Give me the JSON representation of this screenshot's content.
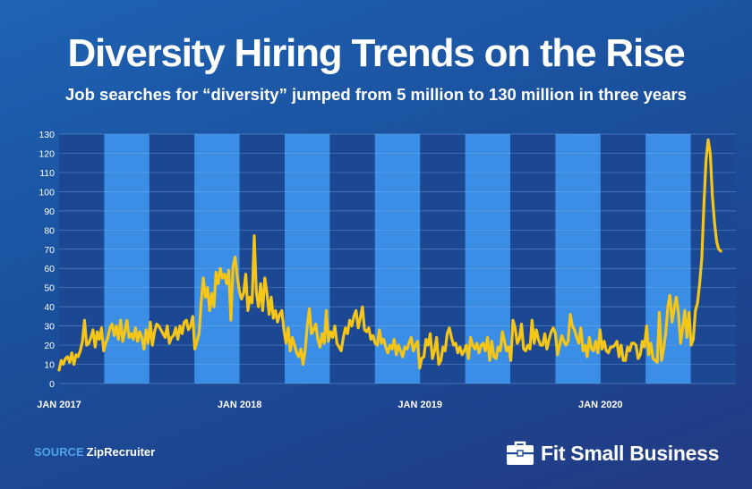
{
  "title": "Diversity Hiring Trends on the Rise",
  "subtitle": "Job searches for “diversity” jumped from 5 million to 130 million in three years",
  "source": {
    "label": "SOURCE",
    "value": "ZipRecruiter"
  },
  "brand": {
    "name": "Fit Small Business",
    "icon": "briefcase-icon"
  },
  "colors": {
    "line": "#f5c518",
    "band_light": "#3a8ee6",
    "band_dark": "#1b4793",
    "grid": "#7fb0e8",
    "text": "#ffffff"
  },
  "chart_data": {
    "type": "line",
    "title": "Diversity Hiring Trends on the Rise",
    "subtitle": "Job searches for “diversity” jumped from 5 million to 130 million in three years",
    "xlabel": "",
    "ylabel": "",
    "ylim": [
      0,
      130
    ],
    "yticks": [
      0,
      10,
      20,
      30,
      40,
      50,
      60,
      70,
      80,
      90,
      100,
      110,
      120,
      130
    ],
    "xlim": [
      "2017-01",
      "2020-10"
    ],
    "xticks": [
      "JAN 2017",
      "JAN 2018",
      "JAN 2019",
      "JAN 2020"
    ],
    "grid": true,
    "background_bands": [
      [
        "2017-04",
        "2017-07"
      ],
      [
        "2017-10",
        "2018-01"
      ],
      [
        "2018-04",
        "2018-07"
      ],
      [
        "2018-10",
        "2019-01"
      ],
      [
        "2019-04",
        "2019-07"
      ],
      [
        "2019-10",
        "2020-01"
      ],
      [
        "2020-04",
        "2020-07"
      ]
    ],
    "series": [
      {
        "x_start": "2017-01",
        "x_end": "2020-09",
        "values": [
          7,
          12,
          10,
          13,
          14,
          11,
          16,
          10,
          15,
          14,
          17,
          22,
          33,
          20,
          21,
          24,
          28,
          19,
          27,
          23,
          29,
          17,
          21,
          24,
          29,
          31,
          25,
          30,
          23,
          33,
          22,
          27,
          33,
          24,
          26,
          23,
          29,
          22,
          27,
          24,
          18,
          28,
          21,
          32,
          20,
          27,
          31,
          30,
          28,
          26,
          24,
          30,
          21,
          24,
          25,
          29,
          23,
          30,
          26,
          32,
          33,
          28,
          30,
          35,
          18,
          22,
          26,
          42,
          55,
          45,
          50,
          38,
          47,
          40,
          58,
          52,
          60,
          55,
          57,
          52,
          59,
          33,
          61,
          66,
          56,
          48,
          44,
          47,
          57,
          38,
          45,
          42,
          77,
          48,
          40,
          52,
          38,
          55,
          47,
          36,
          45,
          34,
          38,
          32,
          36,
          38,
          28,
          21,
          29,
          17,
          24,
          20,
          16,
          14,
          18,
          10,
          17,
          30,
          39,
          26,
          28,
          31,
          23,
          19,
          26,
          21,
          38,
          22,
          27,
          24,
          30,
          21,
          19,
          17,
          24,
          29,
          26,
          33,
          30,
          35,
          38,
          29,
          34,
          40,
          28,
          27,
          29,
          23,
          25,
          21,
          20,
          28,
          21,
          23,
          19,
          16,
          20,
          18,
          23,
          15,
          20,
          17,
          14,
          19,
          18,
          21,
          24,
          17,
          20,
          22,
          8,
          13,
          14,
          23,
          20,
          26,
          13,
          17,
          24,
          10,
          12,
          19,
          17,
          26,
          29,
          24,
          20,
          21,
          16,
          19,
          15,
          17,
          20,
          13,
          24,
          20,
          18,
          21,
          16,
          20,
          21,
          17,
          24,
          12,
          22,
          14,
          13,
          19,
          17,
          27,
          22,
          17,
          19,
          12,
          33,
          29,
          21,
          23,
          31,
          18,
          17,
          20,
          18,
          33,
          21,
          28,
          23,
          20,
          20,
          26,
          18,
          23,
          27,
          29,
          26,
          15,
          20,
          25,
          22,
          20,
          22,
          36,
          30,
          28,
          24,
          21,
          29,
          17,
          20,
          14,
          24,
          18,
          17,
          22,
          16,
          28,
          18,
          22,
          17,
          16,
          19,
          19,
          20,
          22,
          14,
          20,
          12,
          12,
          19,
          17,
          21,
          21,
          20,
          13,
          15,
          22,
          19,
          30,
          15,
          21,
          13,
          12,
          11,
          37,
          12,
          18,
          26,
          40,
          46,
          32,
          39,
          45,
          37,
          21,
          29,
          38,
          24,
          37,
          20,
          23,
          38,
          42,
          52,
          65,
          92,
          116,
          127,
          120,
          98,
          84,
          74,
          70,
          69
        ]
      }
    ]
  }
}
